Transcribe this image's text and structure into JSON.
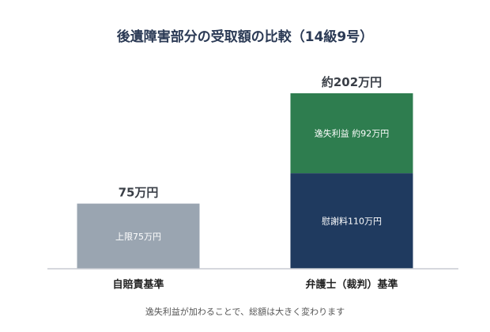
{
  "chart_data": {
    "type": "bar",
    "stacked": true,
    "title": "後遺障害部分の受取額の比較（14級9号）",
    "unit": "万円",
    "categories": [
      "自賠責基準",
      "弁護士（裁判）基準"
    ],
    "total_labels": [
      "75万円",
      "約202万円"
    ],
    "bars": [
      {
        "category": "自賠責基準",
        "total": 75,
        "segments": [
          {
            "label": "上限75万円",
            "value": 75,
            "color": "#9aa5b1"
          }
        ]
      },
      {
        "category": "弁護士（裁判）基準",
        "total": 202,
        "segments": [
          {
            "label": "慰謝料110万円",
            "value": 110,
            "color": "#1f3a5f"
          },
          {
            "label": "逸失利益 約92万円",
            "value": 92,
            "color": "#2e7d4f"
          }
        ]
      }
    ],
    "ylim": [
      0,
      202
    ],
    "grid": false,
    "legend": "none"
  },
  "note": "逸失利益が加わることで、総額は大きく変わります",
  "colors": {
    "baseline": "#c8ccd2",
    "title": "#2b3a55"
  }
}
